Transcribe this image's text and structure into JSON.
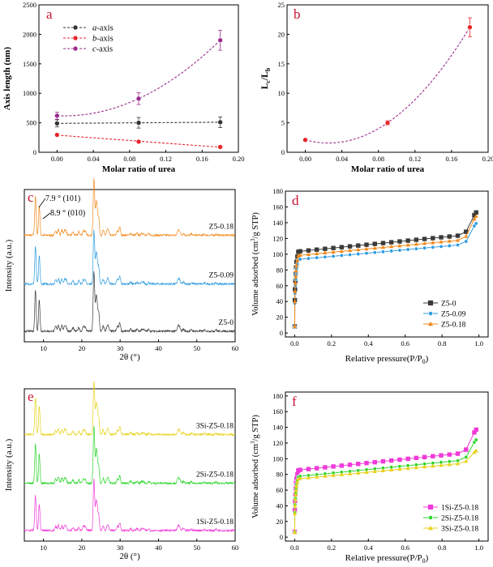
{
  "chart_data": [
    {
      "id": "a",
      "type": "line",
      "letter": "a",
      "xlabel": "Molar ratio of urea",
      "ylabel": "Axis length (nm)",
      "xlim": [
        -0.02,
        0.2
      ],
      "ylim": [
        0,
        2500
      ],
      "xticks": [
        0.0,
        0.04,
        0.08,
        0.12,
        0.16,
        0.2
      ],
      "xticklabels": [
        "0.00",
        "0.04",
        "0.08",
        "0.12",
        "0.16",
        "0.20"
      ],
      "yticks": [
        0,
        500,
        1000,
        1500,
        2000,
        2500
      ],
      "yticklabels": [
        "0",
        "500",
        "1000",
        "1500",
        "2000",
        "2500"
      ],
      "legend_position": "top-left",
      "series": [
        {
          "name": "a-axis",
          "prefix": "a",
          "suffix": "-axis",
          "color": "#333333",
          "marker": "circle",
          "x": [
            0,
            0.09,
            0.18
          ],
          "y": [
            490,
            500,
            510
          ],
          "err": [
            60,
            90,
            90
          ],
          "fit": "linear"
        },
        {
          "name": "b-axis",
          "prefix": "b",
          "suffix": "-axis",
          "color": "#e8262b",
          "marker": "circle",
          "x": [
            0,
            0.09,
            0.18
          ],
          "y": [
            295,
            180,
            90
          ],
          "err": [
            20,
            20,
            20
          ],
          "fit": "linear"
        },
        {
          "name": "c-axis",
          "prefix": "c",
          "suffix": "-axis",
          "color": "#9b2b8e",
          "marker": "circle",
          "x": [
            0,
            0.09,
            0.18
          ],
          "y": [
            620,
            910,
            1900
          ],
          "err": [
            60,
            100,
            170
          ],
          "fit": "quadratic"
        }
      ]
    },
    {
      "id": "b",
      "type": "line",
      "letter": "b",
      "xlabel": "Molar ratio of urea",
      "ylabel_main": "L",
      "ylabel_sub1": "c",
      "ylabel_mid": "/L",
      "ylabel_sub2": "b",
      "xlim": [
        -0.02,
        0.2
      ],
      "ylim": [
        0,
        25
      ],
      "xticks": [
        0.0,
        0.04,
        0.08,
        0.12,
        0.16,
        0.2
      ],
      "xticklabels": [
        "0.00",
        "0.04",
        "0.08",
        "0.12",
        "0.16",
        "0.20"
      ],
      "yticks": [
        0,
        5,
        10,
        15,
        20,
        25
      ],
      "yticklabels": [
        "0",
        "5",
        "10",
        "15",
        "20",
        "25"
      ],
      "series": [
        {
          "name": "Lc/Lb",
          "color": "#e8262b",
          "line_color": "#9b2b8e",
          "marker": "circle",
          "x": [
            0,
            0.09,
            0.18
          ],
          "y": [
            2.1,
            5.0,
            21.2
          ],
          "err": [
            0.2,
            0.4,
            1.6
          ],
          "fit": "quadratic"
        }
      ]
    },
    {
      "id": "c",
      "type": "line",
      "letter": "c",
      "xlabel": "2θ (°)",
      "ylabel": "Intensity (a.u.)",
      "xlim": [
        5,
        60
      ],
      "xticks": [
        10,
        20,
        30,
        40,
        50,
        60
      ],
      "xticklabels": [
        "10",
        "20",
        "30",
        "40",
        "50",
        "60"
      ],
      "annotations": [
        "7.9 ° (101)",
        "8.9 ° (010)"
      ],
      "series": [
        {
          "name": "Z5-0.18",
          "color": "#f28a1c"
        },
        {
          "name": "Z5-0.09",
          "color": "#2c9be0"
        },
        {
          "name": "Z5-0",
          "color": "#3a3a3a"
        }
      ]
    },
    {
      "id": "d",
      "type": "line",
      "letter": "d",
      "xlabel_main": "Relative pressure(P/P",
      "xlabel_sub": "0",
      "xlabel_end": ")",
      "ylabel_a": "Volume adsorbed (cm",
      "ylabel_sup": "3",
      "ylabel_b": "/g STP)",
      "xlim": [
        -0.05,
        1.05
      ],
      "ylim": [
        -5,
        180
      ],
      "xticks": [
        0.0,
        0.2,
        0.4,
        0.6,
        0.8,
        1.0
      ],
      "xticklabels": [
        "0.0",
        "0.2",
        "0.4",
        "0.6",
        "0.8",
        "1.0"
      ],
      "yticks": [
        0,
        20,
        40,
        60,
        80,
        100,
        120,
        140,
        160,
        180
      ],
      "yticklabels": [
        "0",
        "20",
        "40",
        "60",
        "80",
        "100",
        "120",
        "140",
        "160",
        "180"
      ],
      "legend_position": "bottom-right",
      "series": [
        {
          "name": "Z5-0",
          "color": "#3a3a3a",
          "marker": "square",
          "plateau": 103,
          "rise": 22,
          "end": 153
        },
        {
          "name": "Z5-0.09",
          "color": "#2c9be0",
          "marker": "circle",
          "plateau": 93,
          "rise": 20,
          "end": 139
        },
        {
          "name": "Z5-0.18",
          "color": "#f28a1c",
          "marker": "triangle",
          "plateau": 98,
          "rise": 21,
          "end": 148
        }
      ]
    },
    {
      "id": "e",
      "type": "line",
      "letter": "e",
      "xlabel": "2θ (°)",
      "ylabel": "Intensity (a.u.)",
      "xlim": [
        5,
        60
      ],
      "xticks": [
        10,
        20,
        30,
        40,
        50,
        60
      ],
      "xticklabels": [
        "10",
        "20",
        "30",
        "40",
        "50",
        "60"
      ],
      "series": [
        {
          "name": "3Si-Z5-0.18",
          "color": "#e8d21a"
        },
        {
          "name": "2Si-Z5-0.18",
          "color": "#2bd62b"
        },
        {
          "name": "1Si-Z5-0.18",
          "color": "#f03ad8"
        }
      ]
    },
    {
      "id": "f",
      "type": "line",
      "letter": "f",
      "xlabel_main": "Relative pressure(P/P",
      "xlabel_sub": "0",
      "xlabel_end": ")",
      "ylabel_a": "Volume adsorbed (cm",
      "ylabel_sup": "3",
      "ylabel_b": "/g STP)",
      "xlim": [
        -0.05,
        1.05
      ],
      "ylim": [
        -5,
        185
      ],
      "xticks": [
        0.0,
        0.2,
        0.4,
        0.6,
        0.8,
        1.0
      ],
      "xticklabels": [
        "0.0",
        "0.2",
        "0.4",
        "0.6",
        "0.8",
        "1.0"
      ],
      "yticks": [
        0,
        20,
        40,
        60,
        80,
        100,
        120,
        140,
        160,
        180
      ],
      "yticklabels": [
        "0",
        "20",
        "40",
        "60",
        "80",
        "100",
        "120",
        "140",
        "160",
        "180"
      ],
      "legend_position": "bottom-right",
      "series": [
        {
          "name": "1Si-Z5-0.18",
          "color": "#f03ad8",
          "marker": "square",
          "plateau": 85,
          "rise": 23,
          "end": 137
        },
        {
          "name": "2Si-Z5-0.18",
          "color": "#2bd62b",
          "marker": "circle",
          "plateau": 77,
          "rise": 22,
          "end": 124
        },
        {
          "name": "3Si-Z5-0.18",
          "color": "#e8d21a",
          "marker": "triangle",
          "plateau": 74,
          "rise": 21,
          "end": 110
        }
      ]
    }
  ]
}
